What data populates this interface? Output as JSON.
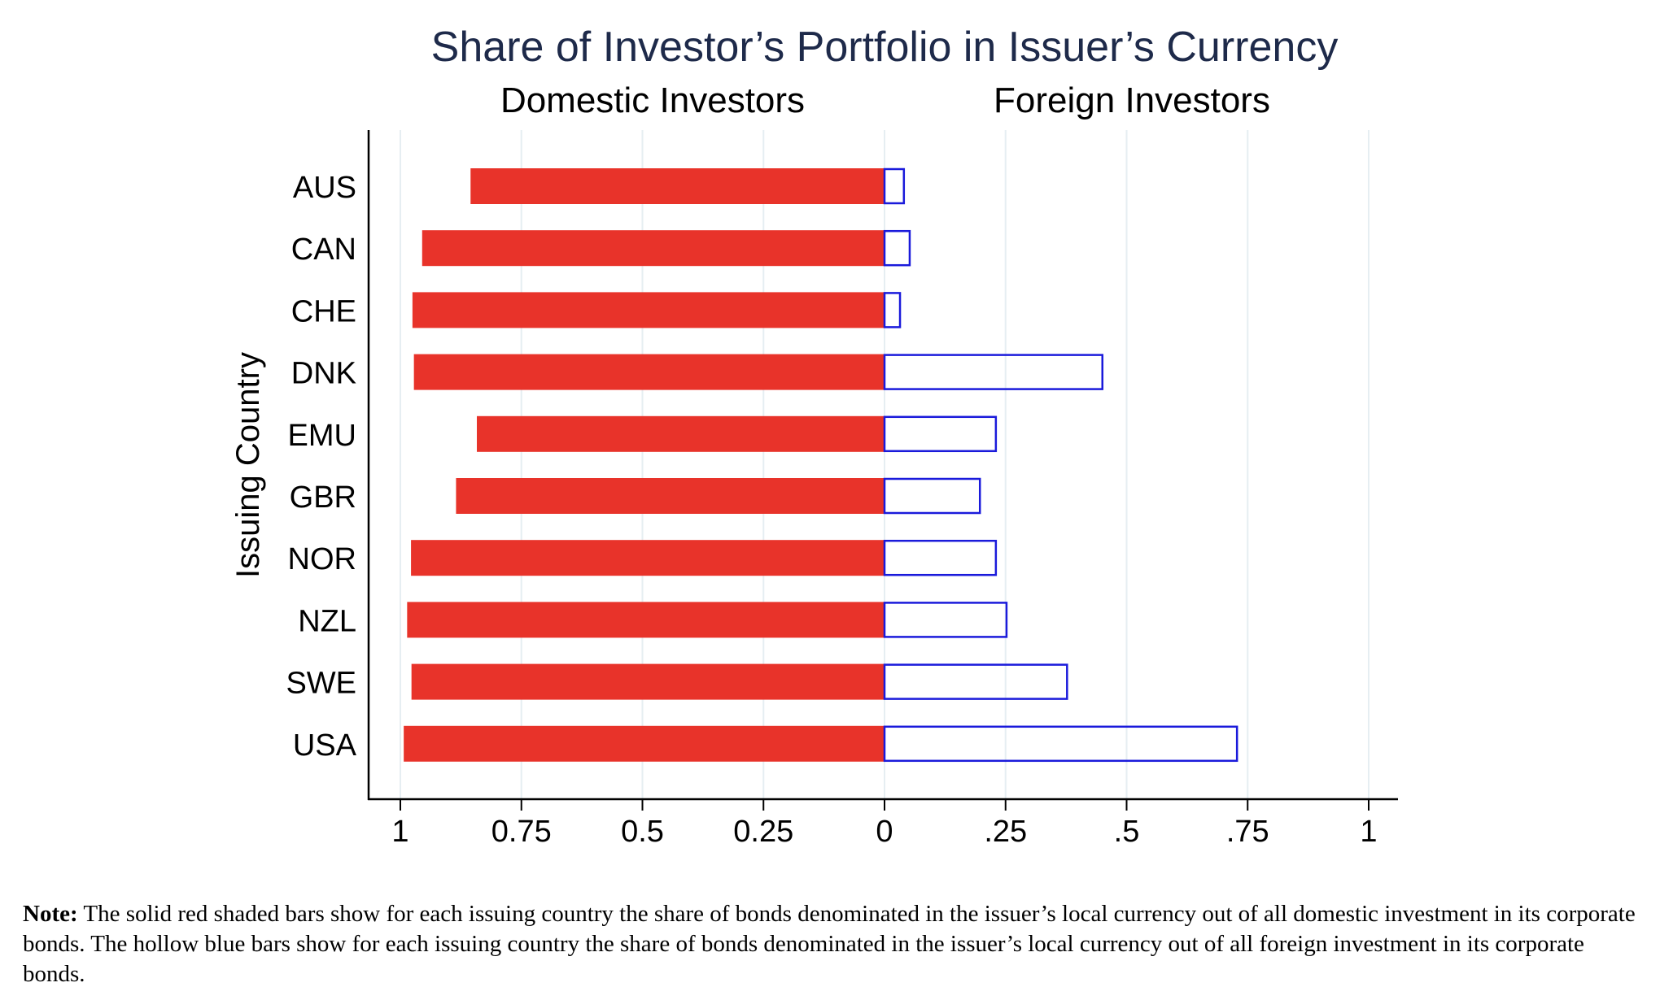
{
  "chart_data": {
    "type": "bar",
    "orientation": "horizontal",
    "title": "Share of Investor’s Portfolio in Issuer’s Currency",
    "ylabel": "Issuing Country",
    "categories": [
      "AUS",
      "CAN",
      "CHE",
      "DNK",
      "EMU",
      "GBR",
      "NOR",
      "NZL",
      "SWE",
      "USA"
    ],
    "series": [
      {
        "name": "Domestic Investors",
        "style": "solid",
        "color": "#e8332a",
        "values": [
          0.855,
          0.955,
          0.975,
          0.972,
          0.842,
          0.885,
          0.978,
          0.986,
          0.977,
          0.993
        ]
      },
      {
        "name": "Foreign Investors",
        "style": "hollow",
        "color": "#1a1adb",
        "values": [
          0.04,
          0.052,
          0.032,
          0.45,
          0.23,
          0.197,
          0.23,
          0.252,
          0.377,
          0.728
        ]
      }
    ],
    "xlim": [
      -1,
      1
    ],
    "left_ticks": [
      {
        "value": 1,
        "label": "1"
      },
      {
        "value": 0.75,
        "label": "0.75"
      },
      {
        "value": 0.5,
        "label": "0.5"
      },
      {
        "value": 0.25,
        "label": "0.25"
      },
      {
        "value": 0,
        "label": "0"
      }
    ],
    "right_ticks": [
      {
        "value": 0.25,
        "label": ".25"
      },
      {
        "value": 0.5,
        "label": ".5"
      },
      {
        "value": 0.75,
        "label": ".75"
      },
      {
        "value": 1,
        "label": "1"
      }
    ],
    "grid": true,
    "title_color": "#1e2a4a"
  },
  "note": {
    "label": "Note:",
    "text": " The solid red shaded bars show for each issuing country the share of bonds denominated in the issuer’s local currency out of all domestic investment in its corporate bonds. The hollow blue bars show for each issuing country the share of bonds denominated in the issuer’s local currency out of all foreign investment in its corporate bonds."
  }
}
